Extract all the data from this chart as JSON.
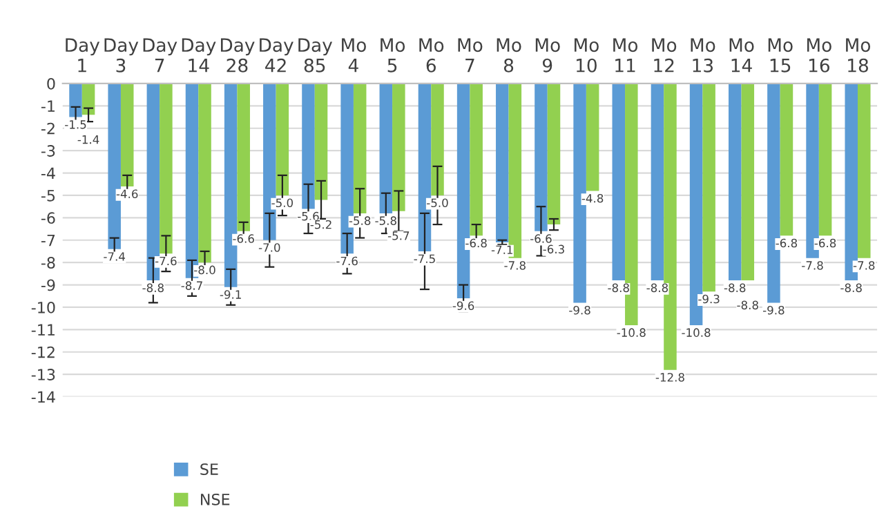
{
  "chart_data": {
    "type": "bar",
    "categories": [
      "Day 1",
      "Day 3",
      "Day 7",
      "Day 14",
      "Day 28",
      "Day 42",
      "Day 85",
      "Mo 4",
      "Mo 5",
      "Mo 6",
      "Mo 7",
      "Mo 8",
      "Mo 9",
      "Mo 10",
      "Mo 11",
      "Mo 12",
      "Mo 13",
      "Mo 14",
      "Mo 15",
      "Mo 16",
      "Mo 18"
    ],
    "series": [
      {
        "name": "SE",
        "color": "#5b9bd5",
        "values": [
          -1.5,
          -7.4,
          -8.8,
          -8.7,
          -9.1,
          -7.0,
          -5.6,
          -7.6,
          -5.8,
          -7.5,
          -9.6,
          -7.1,
          -6.6,
          -9.8,
          -8.8,
          -8.8,
          -10.8,
          -8.8,
          -9.8,
          -7.8,
          -8.8
        ],
        "errors": [
          0.45,
          0.5,
          1.0,
          0.8,
          0.8,
          1.2,
          1.1,
          0.9,
          0.9,
          1.7,
          0.6,
          0.1,
          1.1,
          null,
          null,
          null,
          null,
          null,
          null,
          null,
          null
        ],
        "value_labels": [
          "-1.5",
          "-7.4",
          "-8.8",
          "-8.7",
          "-9.1",
          "-7.0",
          "-5.6",
          "-7.6",
          "-5.8",
          "-7.5",
          "-9.6",
          "-7.1",
          "-6.6",
          "-9.8",
          "-8.8",
          "-8.8",
          "-10.8",
          "-8.8",
          "-9.8",
          "-7.8",
          "-8.8"
        ]
      },
      {
        "name": "NSE",
        "color": "#92d050",
        "values": [
          -1.4,
          -4.6,
          -7.6,
          -8.0,
          -6.6,
          -5.0,
          -5.2,
          -5.8,
          -5.7,
          -5.0,
          -6.8,
          -7.8,
          -6.3,
          -4.8,
          -10.8,
          -12.8,
          -9.3,
          -8.8,
          -6.8,
          -6.8,
          -7.8
        ],
        "errors": [
          0.3,
          0.5,
          0.8,
          0.5,
          0.4,
          0.9,
          0.85,
          1.1,
          0.9,
          1.3,
          0.5,
          null,
          0.25,
          null,
          null,
          null,
          null,
          null,
          null,
          null,
          null
        ],
        "value_labels": [
          "-1.4",
          "-4.6",
          "-7.6",
          "-8.0",
          "-6.6",
          "-5.0",
          "-5.2",
          "-5.8",
          "-5.7",
          "-5.0",
          "-6.8",
          "-7.8",
          "-6.3",
          "-4.8",
          "-10.8",
          "-12.8",
          "-9.3",
          "-8.8",
          "-6.8",
          "-6.8",
          "-7.8"
        ]
      }
    ],
    "ylim": [
      -14,
      0
    ],
    "yticks": [
      -14,
      -13,
      -12,
      -11,
      -10,
      -9,
      -8,
      -7,
      -6,
      -5,
      -4,
      -3,
      -2,
      -1,
      0
    ],
    "grid": "y",
    "data_labels": true,
    "legend": "bottom left"
  }
}
